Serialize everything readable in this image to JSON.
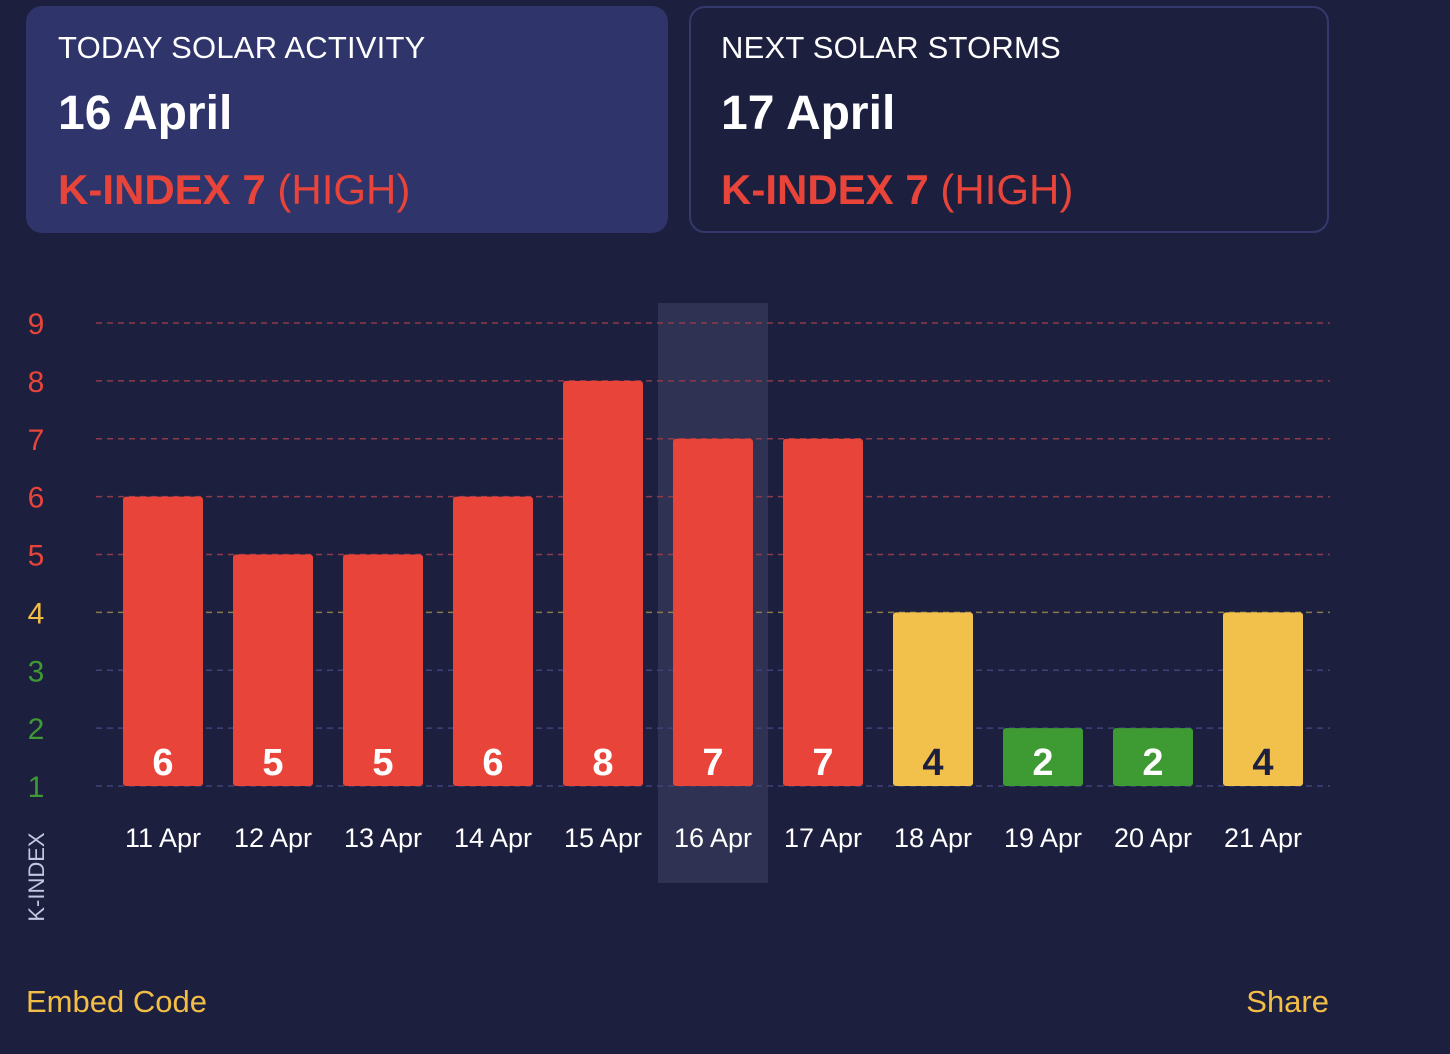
{
  "today": {
    "label": "TODAY SOLAR ACTIVITY",
    "date": "16 April",
    "kindex_text": "K-INDEX 7",
    "level_text": "(HIGH)"
  },
  "next": {
    "label": "NEXT SOLAR STORMS",
    "date": "17 April",
    "kindex_text": "K-INDEX 7",
    "level_text": "(HIGH)"
  },
  "chart_data": {
    "type": "bar",
    "ylabel": "K-INDEX",
    "yticks": [
      1,
      2,
      3,
      4,
      5,
      6,
      7,
      8,
      9
    ],
    "ylim": [
      1,
      9
    ],
    "categories": [
      "11 Apr",
      "12 Apr",
      "13 Apr",
      "14 Apr",
      "15 Apr",
      "16 Apr",
      "17 Apr",
      "18 Apr",
      "19 Apr",
      "20 Apr",
      "21 Apr"
    ],
    "values": [
      6,
      5,
      5,
      6,
      8,
      7,
      7,
      4,
      2,
      2,
      4
    ],
    "highlighted_category": "16 Apr",
    "grid": "dashed",
    "colors": {
      "high": "#e8443a",
      "moderate": "#f2c14b",
      "low": "#3e9a33",
      "highlight": "#2f3253",
      "tick_high": "#e8443a",
      "tick_moderate": "#f2be45",
      "tick_low": "#3e9a33",
      "axis_label": "#c3c6de"
    }
  },
  "footer": {
    "embed_label": "Embed Code",
    "share_label": "Share"
  }
}
